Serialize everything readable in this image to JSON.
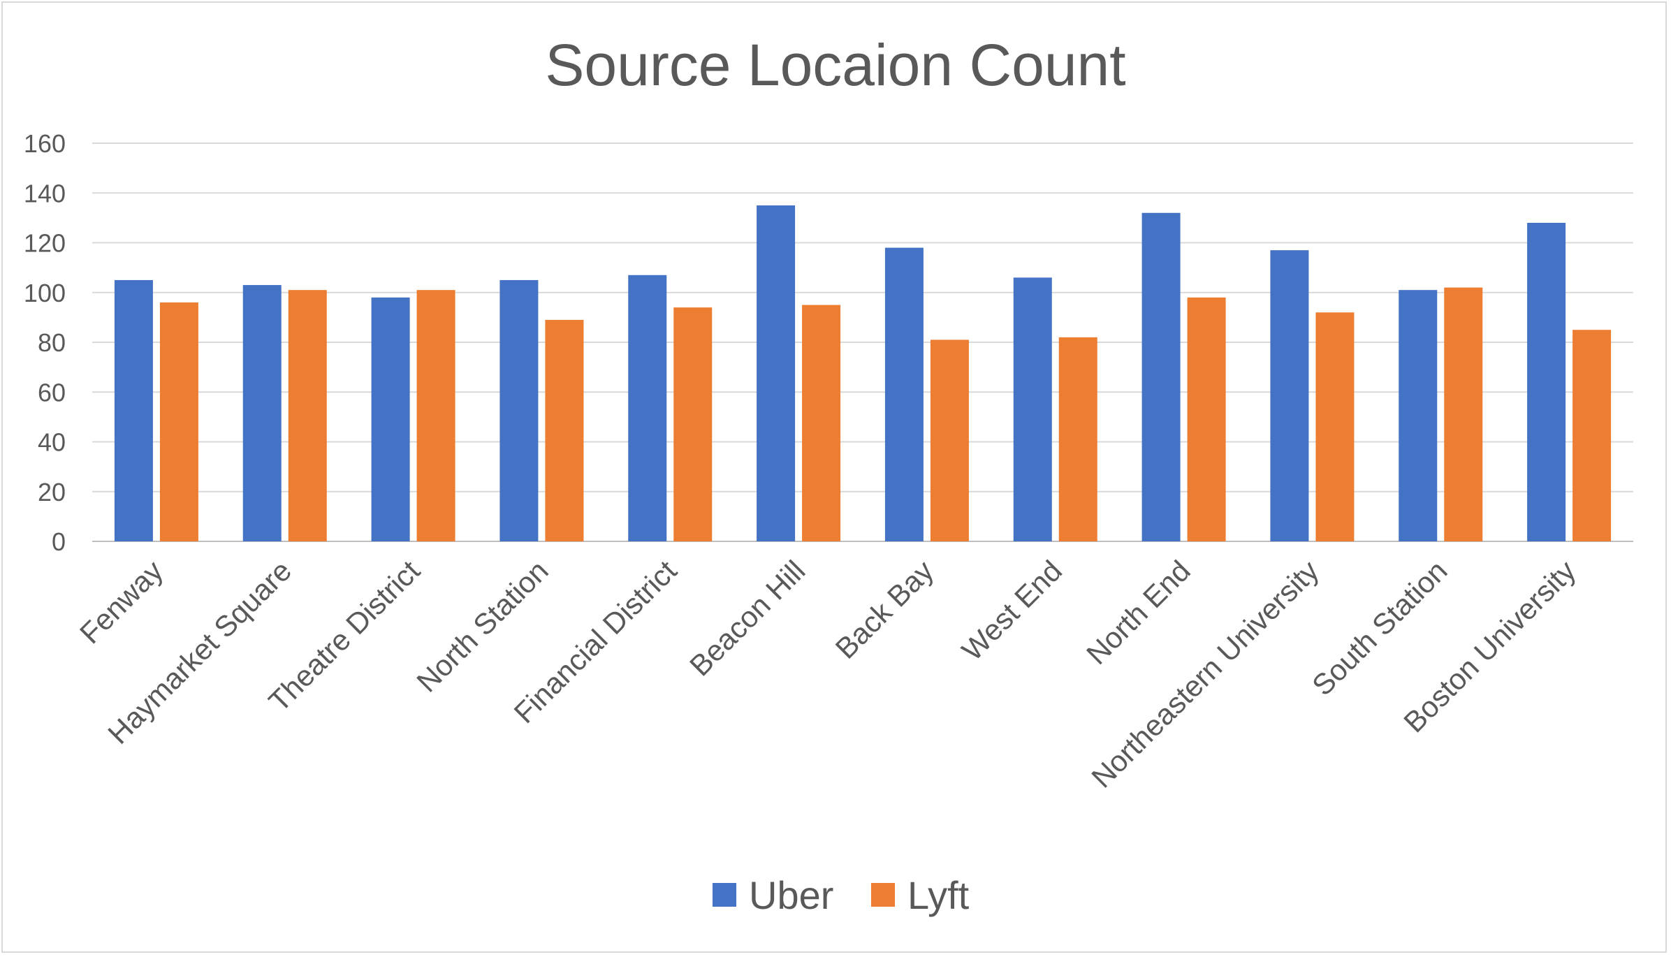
{
  "chart_data": {
    "type": "bar",
    "title": "Source Locaion Count",
    "categories": [
      "Fenway",
      "Haymarket Square",
      "Theatre District",
      "North Station",
      "Financial District",
      "Beacon Hill",
      "Back Bay",
      "West End",
      "North End",
      "Northeastern University",
      "South Station",
      "Boston University"
    ],
    "series": [
      {
        "name": "Uber",
        "color": "#4472C4",
        "values": [
          105,
          103,
          98,
          105,
          107,
          135,
          118,
          106,
          132,
          117,
          101,
          128
        ]
      },
      {
        "name": "Lyft",
        "color": "#ED7D31",
        "values": [
          96,
          101,
          101,
          89,
          94,
          95,
          81,
          82,
          98,
          92,
          102,
          85
        ]
      }
    ],
    "ylim": [
      0,
      160
    ],
    "yticks": [
      "0",
      "20",
      "40",
      "60",
      "80",
      "100",
      "120",
      "140",
      "160"
    ],
    "grid": true,
    "legend_position": "bottom"
  }
}
